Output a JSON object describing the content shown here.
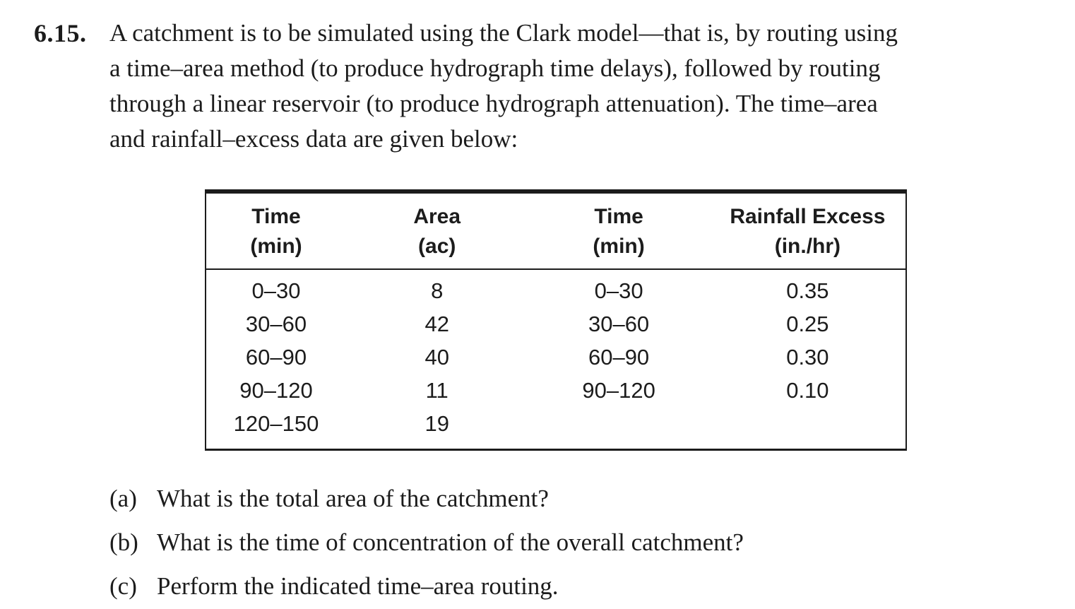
{
  "page": {
    "background_color": "#ffffff",
    "text_color": "#1c1c1c"
  },
  "problem": {
    "number": "6.15.",
    "statement_lines": [
      "A catchment is to be simulated using the Clark model—that is, by routing using",
      "a time–area method (to produce hydrograph time delays), followed by routing",
      "through a linear reservoir (to produce hydrograph attenuation). The time–area",
      "and rainfall–excess data are given below:"
    ]
  },
  "table": {
    "columns": [
      {
        "label": "Time",
        "unit": "(min)"
      },
      {
        "label": "Area",
        "unit": "(ac)"
      },
      {
        "label": "Time",
        "unit": "(min)"
      },
      {
        "label": "Rainfall Excess",
        "unit": "(in./hr)"
      }
    ],
    "rows": [
      [
        "0–30",
        "8",
        "0–30",
        "0.35"
      ],
      [
        "30–60",
        "42",
        "30–60",
        "0.25"
      ],
      [
        "60–90",
        "40",
        "60–90",
        "0.30"
      ],
      [
        "90–120",
        "11",
        "90–120",
        "0.10"
      ],
      [
        "120–150",
        "19",
        "",
        ""
      ]
    ]
  },
  "questions": [
    {
      "label": "(a)",
      "text": "What is the total area of the catchment?"
    },
    {
      "label": "(b)",
      "text": "What is the time of concentration of the overall catchment?"
    },
    {
      "label": "(c)",
      "text": "Perform the indicated time–area routing."
    }
  ]
}
